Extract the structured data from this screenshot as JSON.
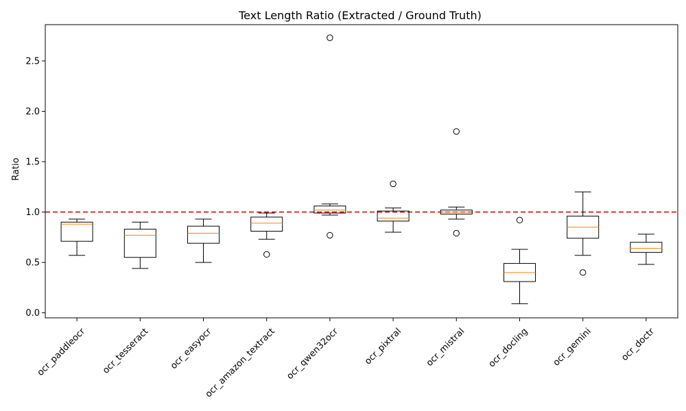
{
  "chart_data": {
    "type": "box",
    "title": "Text Length Ratio (Extracted / Ground Truth)",
    "xlabel": "",
    "ylabel": "Ratio",
    "ylim": [
      -0.05,
      2.86
    ],
    "yticks": [
      0.0,
      0.5,
      1.0,
      1.5,
      2.0,
      2.5
    ],
    "ytick_labels": [
      "0.0",
      "0.5",
      "1.0",
      "1.5",
      "2.0",
      "2.5"
    ],
    "reference_line": {
      "y": 1.0,
      "color": "#d62728",
      "style": "dashed"
    },
    "box_color": "#000000",
    "median_color": "#ff7f0e",
    "grid": false,
    "categories": [
      "ocr_paddleocr",
      "ocr_tesseract",
      "ocr_easyocr",
      "ocr_amazon_textract",
      "ocr_qwen32ocr",
      "ocr_pixtral",
      "ocr_mistral",
      "ocr_docling",
      "ocr_gemini",
      "ocr_doctr"
    ],
    "boxes": [
      {
        "name": "ocr_paddleocr",
        "whislo": 0.57,
        "q1": 0.71,
        "med": 0.88,
        "q3": 0.9,
        "whishi": 0.93,
        "fliers": []
      },
      {
        "name": "ocr_tesseract",
        "whislo": 0.44,
        "q1": 0.55,
        "med": 0.77,
        "q3": 0.83,
        "whishi": 0.9,
        "fliers": []
      },
      {
        "name": "ocr_easyocr",
        "whislo": 0.5,
        "q1": 0.69,
        "med": 0.79,
        "q3": 0.86,
        "whishi": 0.93,
        "fliers": []
      },
      {
        "name": "ocr_amazon_textract",
        "whislo": 0.73,
        "q1": 0.81,
        "med": 0.89,
        "q3": 0.95,
        "whishi": 0.99,
        "fliers": [
          0.58
        ]
      },
      {
        "name": "ocr_qwen32ocr",
        "whislo": 0.97,
        "q1": 0.99,
        "med": 1.02,
        "q3": 1.06,
        "whishi": 1.08,
        "fliers": [
          2.73,
          0.77
        ]
      },
      {
        "name": "ocr_pixtral",
        "whislo": 0.8,
        "q1": 0.91,
        "med": 0.94,
        "q3": 1.01,
        "whishi": 1.04,
        "fliers": [
          1.28
        ]
      },
      {
        "name": "ocr_mistral",
        "whislo": 0.93,
        "q1": 0.98,
        "med": 1.0,
        "q3": 1.02,
        "whishi": 1.05,
        "fliers": [
          1.8,
          0.79
        ]
      },
      {
        "name": "ocr_docling",
        "whislo": 0.09,
        "q1": 0.31,
        "med": 0.4,
        "q3": 0.49,
        "whishi": 0.63,
        "fliers": [
          0.92
        ]
      },
      {
        "name": "ocr_gemini",
        "whislo": 0.57,
        "q1": 0.74,
        "med": 0.85,
        "q3": 0.96,
        "whishi": 1.2,
        "fliers": [
          0.4
        ]
      },
      {
        "name": "ocr_doctr",
        "whislo": 0.48,
        "q1": 0.6,
        "med": 0.64,
        "q3": 0.7,
        "whishi": 0.78,
        "fliers": []
      }
    ]
  }
}
